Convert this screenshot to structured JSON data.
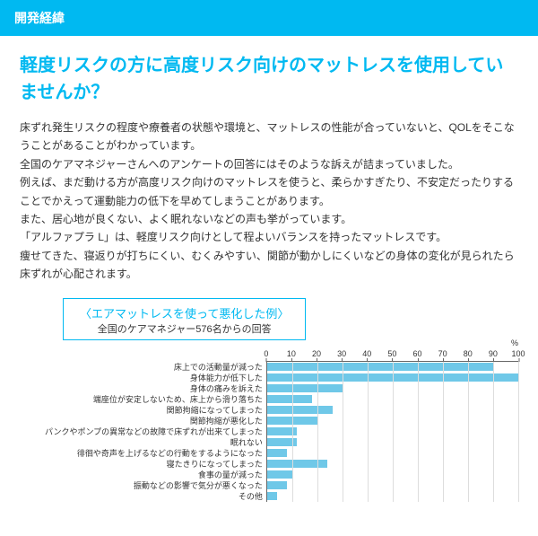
{
  "header": {
    "title": "開発経緯"
  },
  "heading": "軽度リスクの方に高度リスク向けのマットレスを使用していませんか？",
  "paragraphs": [
    "床ずれ発生リスクの程度や療養者の状態や環境と、マットレスの性能が合っていないと、QOLをそこなうことがあることがわかっています。",
    "全国のケアマネジャーさんへのアンケートの回答にはそのような訴えが詰まっていました。",
    "例えば、まだ動ける方が高度リスク向けのマットレスを使うと、柔らかすぎたり、不安定だったりすることでかえって運動能力の低下を早めてしまうことがあります。",
    "また、居心地が良くない、よく眠れないなどの声も挙がっています。",
    "「アルファプラ L」は、軽度リスク向けとして程よいバランスを持ったマットレスです。",
    "痩せてきた、寝返りが打ちにくい、むくみやすい、関節が動かしにくいなどの身体の変化が見られたら床ずれが心配されます。"
  ],
  "chart": {
    "type": "bar-horizontal",
    "title": "〈エアマットレスを使って悪化した例〉",
    "subtitle": "全国のケアマネジャー576名からの回答",
    "unit": "%",
    "xlim": [
      0,
      100
    ],
    "xticks": [
      0,
      10,
      20,
      30,
      40,
      50,
      60,
      70,
      80,
      90,
      100
    ],
    "bar_color": "#6fc8e8",
    "bg_color": "#ffffff",
    "grid_color": "#dddddd",
    "axis_color": "#666666",
    "label_fontsize": 9,
    "items": [
      {
        "label": "床上での活動量が減った",
        "value": 90
      },
      {
        "label": "身体能力が低下した",
        "value": 100
      },
      {
        "label": "身体の痛みを訴えた",
        "value": 30
      },
      {
        "label": "端座位が安定しないため、床上から滑り落ちた",
        "value": 18
      },
      {
        "label": "関節拘縮になってしまった",
        "value": 26
      },
      {
        "label": "関節拘縮が悪化した",
        "value": 20
      },
      {
        "label": "パンクやポンプの異常などの故障で床ずれが出来てしまった",
        "value": 12
      },
      {
        "label": "眠れない",
        "value": 12
      },
      {
        "label": "徘徊や奇声を上げるなどの行動をするようになった",
        "value": 8
      },
      {
        "label": "寝たきりになってしまった",
        "value": 24
      },
      {
        "label": "食事の量が減った",
        "value": 10
      },
      {
        "label": "振動などの影響で気分が悪くなった",
        "value": 8
      },
      {
        "label": "その他",
        "value": 4
      }
    ]
  }
}
